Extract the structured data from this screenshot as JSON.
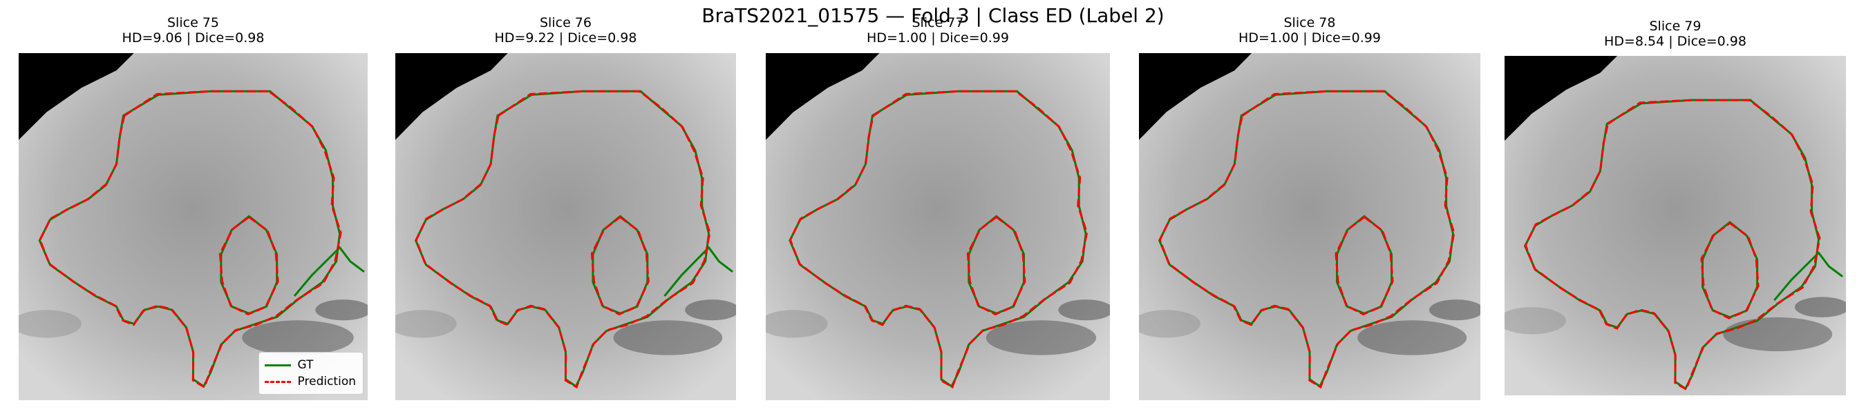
{
  "title": "BraTS2021_01575 — Fold 3 | Class ED (Label 2)",
  "legend": [
    {
      "label": "GT",
      "color": "#008000",
      "style": "solid"
    },
    {
      "label": "Prediction",
      "color": "#ff0000",
      "style": "dashed"
    }
  ],
  "chart_data": {
    "type": "image-grid",
    "title": "BraTS2021_01575 — Fold 3 | Class ED (Label 2)",
    "panels": [
      {
        "slice_label": "Slice 75",
        "metrics_label": "HD=9.06 | Dice=0.98",
        "slice": 75,
        "hd": 9.06,
        "dice": 0.98
      },
      {
        "slice_label": "Slice 76",
        "metrics_label": "HD=9.22 | Dice=0.98",
        "slice": 76,
        "hd": 9.22,
        "dice": 0.98
      },
      {
        "slice_label": "Slice 77",
        "metrics_label": "HD=1.00 | Dice=0.99",
        "slice": 77,
        "hd": 1.0,
        "dice": 0.99
      },
      {
        "slice_label": "Slice 78",
        "metrics_label": "HD=1.00 | Dice=0.99",
        "slice": 78,
        "hd": 1.0,
        "dice": 0.99
      },
      {
        "slice_label": "Slice 79",
        "metrics_label": "HD=8.54 | Dice=0.98",
        "slice": 79,
        "hd": 8.54,
        "dice": 0.98
      }
    ],
    "legend_placement": "lower-right",
    "colors": {
      "gt": "#008000",
      "prediction": "#ff0000"
    }
  }
}
